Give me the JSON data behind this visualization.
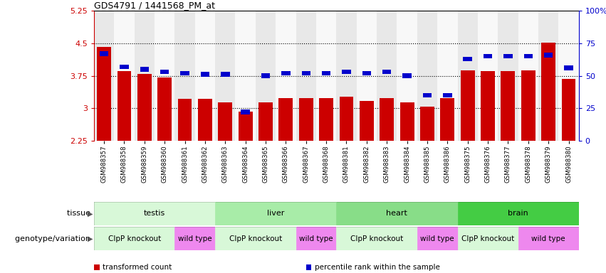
{
  "title": "GDS4791 / 1441568_PM_at",
  "samples": [
    "GSM988357",
    "GSM988358",
    "GSM988359",
    "GSM988360",
    "GSM988361",
    "GSM988362",
    "GSM988363",
    "GSM988364",
    "GSM988365",
    "GSM988366",
    "GSM988367",
    "GSM988368",
    "GSM988381",
    "GSM988382",
    "GSM988383",
    "GSM988384",
    "GSM988385",
    "GSM988386",
    "GSM988375",
    "GSM988376",
    "GSM988377",
    "GSM988378",
    "GSM988379",
    "GSM988380"
  ],
  "bar_values": [
    4.42,
    3.86,
    3.79,
    3.71,
    3.22,
    3.22,
    3.14,
    2.92,
    3.14,
    3.24,
    3.24,
    3.24,
    3.27,
    3.16,
    3.24,
    3.14,
    3.03,
    3.24,
    3.88,
    3.85,
    3.85,
    3.88,
    4.52,
    3.67
  ],
  "percentile_values": [
    67,
    57,
    55,
    53,
    52,
    51,
    51,
    22,
    50,
    52,
    52,
    52,
    53,
    52,
    53,
    50,
    35,
    35,
    63,
    65,
    65,
    65,
    66,
    56
  ],
  "ymin": 2.25,
  "ymax": 5.25,
  "yticks": [
    2.25,
    3.0,
    3.75,
    4.5,
    5.25
  ],
  "ytick_labels": [
    "2.25",
    "3",
    "3.75",
    "4.5",
    "5.25"
  ],
  "right_yticks": [
    0,
    25,
    50,
    75,
    100
  ],
  "right_ytick_labels": [
    "0",
    "25",
    "50",
    "75",
    "100%"
  ],
  "dotted_lines": [
    3.0,
    3.75,
    4.5
  ],
  "bar_color": "#cc0000",
  "percentile_color": "#0000cc",
  "bar_bottom": 2.25,
  "tissues": [
    {
      "label": "testis",
      "start": 0,
      "end": 6
    },
    {
      "label": "liver",
      "start": 6,
      "end": 12
    },
    {
      "label": "heart",
      "start": 12,
      "end": 18
    },
    {
      "label": "brain",
      "start": 18,
      "end": 24
    }
  ],
  "tissue_colors": {
    "testis": "#d8f8d8",
    "liver": "#a8eca8",
    "heart": "#88dd88",
    "brain": "#44cc44"
  },
  "genotypes": [
    {
      "label": "ClpP knockout",
      "start": 0,
      "end": 4
    },
    {
      "label": "wild type",
      "start": 4,
      "end": 6
    },
    {
      "label": "ClpP knockout",
      "start": 6,
      "end": 10
    },
    {
      "label": "wild type",
      "start": 10,
      "end": 12
    },
    {
      "label": "ClpP knockout",
      "start": 12,
      "end": 16
    },
    {
      "label": "wild type",
      "start": 16,
      "end": 18
    },
    {
      "label": "ClpP knockout",
      "start": 18,
      "end": 21
    },
    {
      "label": "wild type",
      "start": 21,
      "end": 24
    }
  ],
  "geno_colors": {
    "ClpP knockout": "#d8f8d8",
    "wild type": "#ee88ee"
  },
  "legend_items": [
    {
      "label": "transformed count",
      "color": "#cc0000"
    },
    {
      "label": "percentile rank within the sample",
      "color": "#0000cc"
    }
  ],
  "tissue_label": "tissue",
  "genotype_label": "genotype/variation",
  "col_bg_even": "#e8e8e8",
  "col_bg_odd": "#f8f8f8"
}
